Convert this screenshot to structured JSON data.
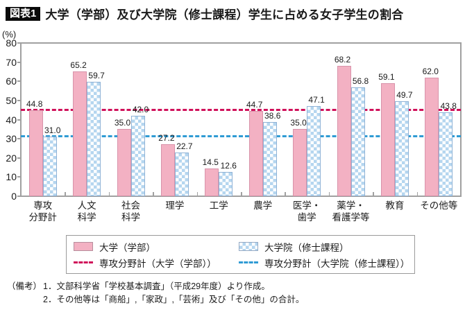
{
  "header": {
    "badge": "図表1",
    "title": "大学（学部）及び大学院（修士課程）学生に占める女子学生の割合"
  },
  "chart_data": {
    "type": "bar",
    "unit_label": "(%)",
    "ylim": [
      0,
      80
    ],
    "ytick_step": 10,
    "grid": false,
    "legend_position": "bottom",
    "categories": [
      [
        "専攻",
        "分野計"
      ],
      [
        "人文",
        "科学"
      ],
      [
        "社会",
        "科学"
      ],
      [
        "理学"
      ],
      [
        "工学"
      ],
      [
        "農学"
      ],
      [
        "医学・",
        "歯学"
      ],
      [
        "薬学・",
        "看護学等"
      ],
      [
        "教育"
      ],
      [
        "その他等"
      ]
    ],
    "series": [
      {
        "name": "大学（学部）",
        "style": "pink",
        "fill": "#f3b1c3",
        "border": "#d893aa",
        "values": [
          44.8,
          65.2,
          35.0,
          27.2,
          14.5,
          44.7,
          35.0,
          68.2,
          59.1,
          62.0
        ]
      },
      {
        "name": "大学院（修士課程）",
        "style": "checker",
        "fill": "#b5d6ef",
        "border": "#8fb2d6",
        "values": [
          31.0,
          59.7,
          42.0,
          22.7,
          12.6,
          38.6,
          47.1,
          56.8,
          49.7,
          43.8
        ]
      }
    ],
    "reference_lines": [
      {
        "name": "専攻分野計（大学（学部））",
        "value": 44.8,
        "color": "#d0105a"
      },
      {
        "name": "専攻分野計（大学院（修士課程））",
        "value": 31.0,
        "color": "#2f9bd4"
      }
    ]
  },
  "notes": {
    "label": "（備考）",
    "lines": [
      "1．文部科学省「学校基本調査」（平成29年度）より作成。",
      "2．その他等は「商船」,「家政」,「芸術」及び「その他」の合計。"
    ]
  }
}
